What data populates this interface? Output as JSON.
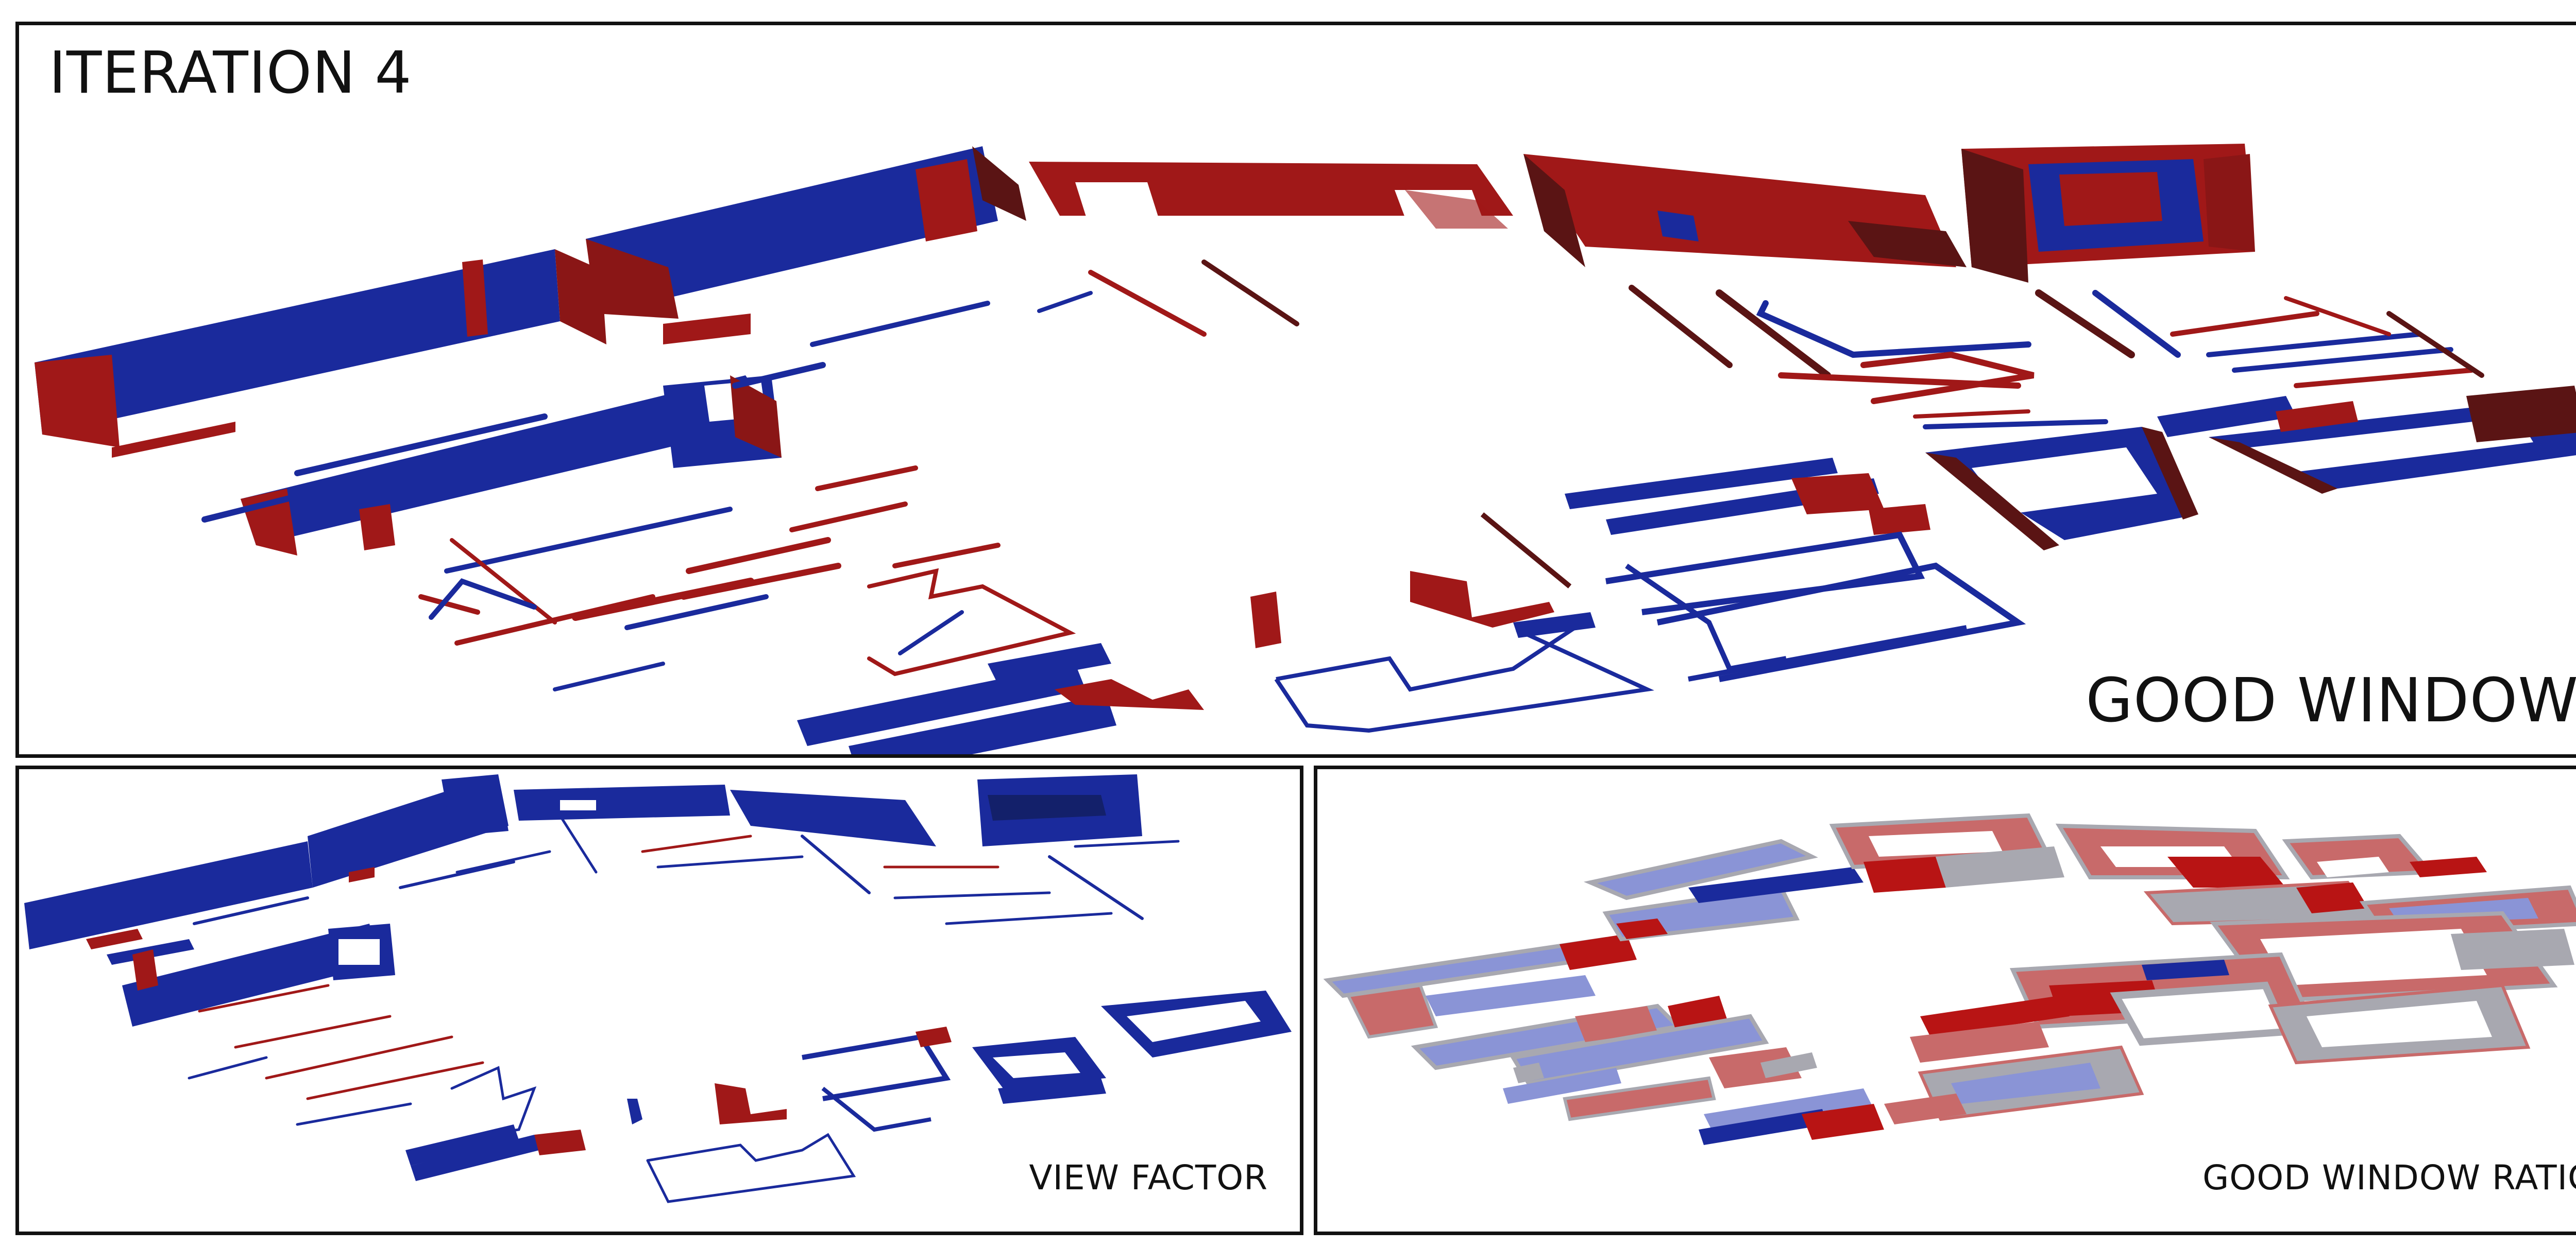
{
  "panels": {
    "main": {
      "title": "ITERATION 4",
      "label": "GOOD WINDOW"
    },
    "view_factor": {
      "label": "VIEW FACTOR"
    },
    "good_window_ratio": {
      "label": "GOOD WINDOW RATIO"
    }
  },
  "colors": {
    "blue": "#1a2a9c",
    "red": "#a01818",
    "dark_red": "#5a1414",
    "light_blue": "#8a94d6",
    "light_red": "#c86a6a",
    "gray": "#a8a8b0",
    "border": "#111111"
  }
}
